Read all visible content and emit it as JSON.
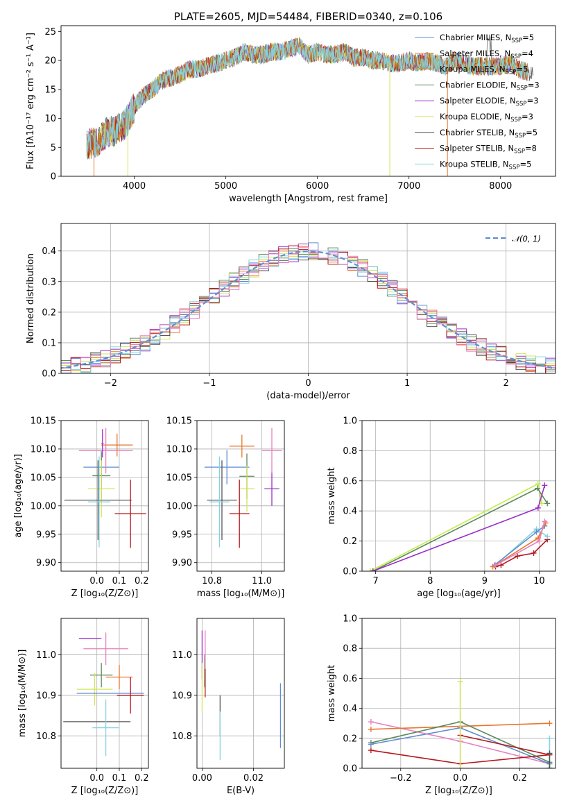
{
  "colors": {
    "blue": "#5f8dd3",
    "orange": "#e8762b",
    "green": "#5c8a5c",
    "purple": "#9b30c8",
    "yellow": "#d4e35a",
    "gray": "#555555",
    "red": "#b5171b",
    "cyan": "#86d3e0",
    "pink": "#e87fbf",
    "lime": "#c5ec4a",
    "dashed": "#5f8dd3",
    "grid": "#b0b0b0"
  },
  "chart_data": [
    {
      "id": "spectrum",
      "type": "line",
      "title": "PLATE=2605, MJD=54484, FIBERID=0340, z=0.106",
      "xlabel": "wavelength [Angstrom, rest frame]",
      "ylabel": "Flux [fλ10⁻¹⁷ erg cm⁻² s⁻¹ A⁻¹]",
      "xlim": [
        3200,
        8600
      ],
      "ylim": [
        0,
        26
      ],
      "xticks": [
        "4000",
        "5000",
        "6000",
        "7000",
        "8000"
      ],
      "yticks": [
        "0",
        "5",
        "10",
        "15",
        "20",
        "25"
      ],
      "grid": false,
      "legend_position": "right",
      "x": [
        3500,
        3600,
        3700,
        3800,
        3900,
        4000,
        4100,
        4200,
        4300,
        4400,
        4500,
        4600,
        4700,
        4800,
        4900,
        5000,
        5100,
        5200,
        5300,
        5400,
        5500,
        5600,
        5700,
        5800,
        5900,
        6000,
        6100,
        6200,
        6300,
        6400,
        6500,
        6600,
        6700,
        6800,
        6900,
        7000,
        7100,
        7200,
        7300,
        7400,
        7500,
        7600,
        7700,
        7800,
        7900,
        8000,
        8100,
        8200,
        8300
      ],
      "y": [
        5.5,
        6.0,
        7.5,
        8.0,
        9.0,
        12.0,
        14.0,
        15.0,
        16.5,
        17.0,
        17.5,
        18.5,
        18.5,
        19.0,
        19.5,
        20.0,
        20.5,
        21.5,
        21.0,
        21.0,
        21.5,
        21.5,
        22.0,
        22.5,
        21.0,
        21.5,
        21.0,
        21.0,
        21.5,
        20.5,
        20.5,
        20.0,
        20.0,
        19.5,
        19.5,
        20.0,
        19.5,
        20.0,
        19.5,
        19.0,
        20.0,
        19.5,
        19.0,
        19.0,
        19.0,
        19.0,
        19.5,
        18.5,
        18.0
      ],
      "series": [
        {
          "name": "Chabrier MILES, N",
          "sub": "SSP",
          "suffix": "=5",
          "color": "#5f8dd3"
        },
        {
          "name": "Salpeter MILES, N",
          "sub": "SSP",
          "suffix": "=4",
          "color": "#e8762b"
        },
        {
          "name": "Kroupa MILES, N",
          "sub": "SSP",
          "suffix": "=5",
          "color": "#c58a1e"
        },
        {
          "name": "Chabrier ELODIE, N",
          "sub": "SSP",
          "suffix": "=3",
          "color": "#5c8a5c"
        },
        {
          "name": "Salpeter ELODIE, N",
          "sub": "SSP",
          "suffix": "=3",
          "color": "#9b30c8"
        },
        {
          "name": "Kroupa ELODIE, N",
          "sub": "SSP",
          "suffix": "=3",
          "color": "#d4e35a"
        },
        {
          "name": "Chabrier STELIB, N",
          "sub": "SSP",
          "suffix": "=5",
          "color": "#555555"
        },
        {
          "name": "Salpeter STELIB, N",
          "sub": "SSP",
          "suffix": "=8",
          "color": "#b5171b"
        },
        {
          "name": "Kroupa STELIB, N",
          "sub": "SSP",
          "suffix": "=5",
          "color": "#86d3e0"
        }
      ]
    },
    {
      "id": "residuals",
      "type": "line",
      "xlabel": "(data-model)/error",
      "ylabel": "Normed distribution",
      "xlim": [
        -2.5,
        2.5
      ],
      "ylim": [
        0,
        0.49
      ],
      "xticks": [
        "−2",
        "−1",
        "0",
        "1",
        "2"
      ],
      "xtick_values": [
        -2,
        -1,
        0,
        1,
        2
      ],
      "yticks": [
        "0.0",
        "0.1",
        "0.2",
        "0.3",
        "0.4"
      ],
      "ytick_values": [
        0,
        0.1,
        0.2,
        0.3,
        0.4
      ],
      "grid": true,
      "legend_position": "top-right",
      "legend_label": "𝒩(0, 1)"
    },
    {
      "id": "age-vs-z",
      "type": "scatter",
      "xlabel": "Z [log₁₀(Z/Z⊙)]",
      "ylabel": "age  [log₁₀(age/yr)]",
      "xlim": [
        -0.16,
        0.23
      ],
      "ylim": [
        9.885,
        10.15
      ],
      "xticks": [
        "0.0",
        "0.1",
        "0.2"
      ],
      "xtick_values": [
        0.0,
        0.1,
        0.2
      ],
      "yticks": [
        "9.90",
        "9.95",
        "10.00",
        "10.05",
        "10.10",
        "10.15"
      ],
      "ytick_values": [
        9.9,
        9.95,
        10.0,
        10.05,
        10.1,
        10.15
      ],
      "grid": true,
      "points": [
        {
          "x": 0.02,
          "y": 10.068,
          "xerr": 0.08,
          "yerr": 0.03,
          "color": "#5f8dd3"
        },
        {
          "x": 0.09,
          "y": 10.107,
          "xerr": 0.07,
          "yerr": 0.02,
          "color": "#e8762b"
        },
        {
          "x": 0.02,
          "y": 10.053,
          "xerr": 0.04,
          "yerr": 0.04,
          "color": "#5c8a5c"
        },
        {
          "x": 0.02,
          "y": 10.03,
          "xerr": 0.06,
          "yerr": 0.05,
          "color": "#d4e35a"
        },
        {
          "x": 0.04,
          "y": 10.097,
          "xerr": 0.12,
          "yerr": 0.04,
          "color": "#e87fbf"
        },
        {
          "x": 0.005,
          "y": 10.01,
          "xerr": 0.15,
          "yerr": 0.07,
          "color": "#555555"
        },
        {
          "x": 0.15,
          "y": 9.986,
          "xerr": 0.07,
          "yerr": 0.06,
          "color": "#b5171b"
        },
        {
          "x": 0.01,
          "y": 10.007,
          "xerr": 0.05,
          "yerr": 0.08,
          "color": "#86d3e0"
        },
        {
          "x": 0.025,
          "y": 10.11,
          "xerr": 0.005,
          "yerr": 0.025,
          "color": "#9b30c8"
        }
      ]
    },
    {
      "id": "age-vs-mass",
      "type": "scatter",
      "xlabel": "mass [log₁₀(M/M⊙)]",
      "ylabel": "",
      "xlim": [
        10.74,
        11.09
      ],
      "ylim": [
        9.885,
        10.15
      ],
      "xticks": [
        "10.8",
        "11.0"
      ],
      "xtick_values": [
        10.8,
        11.0
      ],
      "yticks": [
        "9.90",
        "9.95",
        "10.00",
        "10.05",
        "10.10",
        "10.15"
      ],
      "ytick_values": [
        9.9,
        9.95,
        10.0,
        10.05,
        10.1,
        10.15
      ],
      "grid": true,
      "points": [
        {
          "x": 10.92,
          "y": 10.105,
          "xerr": 0.05,
          "yerr": 0.02,
          "color": "#e8762b"
        },
        {
          "x": 10.86,
          "y": 10.068,
          "xerr": 0.09,
          "yerr": 0.03,
          "color": "#5f8dd3"
        },
        {
          "x": 10.94,
          "y": 10.052,
          "xerr": 0.03,
          "yerr": 0.04,
          "color": "#5c8a5c"
        },
        {
          "x": 10.94,
          "y": 10.03,
          "xerr": 0.03,
          "yerr": 0.04,
          "color": "#d4e35a"
        },
        {
          "x": 11.04,
          "y": 10.03,
          "xerr": 0.03,
          "yerr": 0.03,
          "color": "#9b30c8"
        },
        {
          "x": 11.04,
          "y": 10.097,
          "xerr": 0.04,
          "yerr": 0.04,
          "color": "#e87fbf"
        },
        {
          "x": 10.84,
          "y": 10.01,
          "xerr": 0.06,
          "yerr": 0.07,
          "color": "#555555"
        },
        {
          "x": 10.91,
          "y": 9.986,
          "xerr": 0.04,
          "yerr": 0.06,
          "color": "#b5171b"
        },
        {
          "x": 10.83,
          "y": 10.007,
          "xerr": 0.04,
          "yerr": 0.08,
          "color": "#86d3e0"
        }
      ]
    },
    {
      "id": "weight-vs-age",
      "type": "line",
      "xlabel": "age  [log₁₀(age/yr)]",
      "ylabel": "mass weight",
      "xlim": [
        6.75,
        10.3
      ],
      "ylim": [
        0,
        1
      ],
      "xticks": [
        "7",
        "8",
        "9",
        "10"
      ],
      "xtick_values": [
        7,
        8,
        9,
        10
      ],
      "yticks": [
        "0.0",
        "0.2",
        "0.4",
        "0.6",
        "0.8",
        "1.0"
      ],
      "ytick_values": [
        0,
        0.2,
        0.4,
        0.6,
        0.8,
        1.0
      ],
      "grid": true,
      "series": [
        {
          "color": "#c5ec4a",
          "x": [
            6.9,
            9.98,
            10.05
          ],
          "y": [
            0.0,
            0.58,
            0.45
          ]
        },
        {
          "color": "#5c8a5c",
          "x": [
            6.95,
            9.97,
            10.15
          ],
          "y": [
            0.0,
            0.55,
            0.45
          ]
        },
        {
          "color": "#9b30c8",
          "x": [
            6.95,
            9.98,
            10.1
          ],
          "y": [
            0.0,
            0.42,
            0.57
          ]
        },
        {
          "color": "#b5171b",
          "x": [
            9.2,
            9.3,
            9.6,
            9.9,
            10.15
          ],
          "y": [
            0.03,
            0.04,
            0.1,
            0.12,
            0.21
          ]
        },
        {
          "color": "#86d3e0",
          "x": [
            9.2,
            9.95,
            10.15
          ],
          "y": [
            0.04,
            0.28,
            0.23
          ]
        },
        {
          "color": "#5f8dd3",
          "x": [
            9.18,
            9.95,
            10.1
          ],
          "y": [
            0.04,
            0.26,
            0.3
          ]
        },
        {
          "color": "#e8762b",
          "x": [
            9.15,
            9.98,
            10.12
          ],
          "y": [
            0.03,
            0.22,
            0.32
          ]
        },
        {
          "color": "#e87fbf",
          "x": [
            9.2,
            10.0,
            10.1
          ],
          "y": [
            0.04,
            0.2,
            0.33
          ]
        }
      ]
    },
    {
      "id": "mass-vs-z",
      "type": "scatter",
      "xlabel": "Z [log₁₀(Z/Z⊙)]",
      "ylabel": "mass [log₁₀(M/M⊙)]",
      "xlim": [
        -0.16,
        0.23
      ],
      "ylim": [
        10.72,
        11.09
      ],
      "xticks": [
        "0.0",
        "0.1",
        "0.2"
      ],
      "xtick_values": [
        0.0,
        0.1,
        0.2
      ],
      "yticks": [
        "10.8",
        "10.9",
        "11.0"
      ],
      "ytick_values": [
        10.8,
        10.9,
        11.0
      ],
      "grid": true,
      "points": [
        {
          "x": -0.03,
          "y": 11.04,
          "xerr": 0.05,
          "yerr": 0.0,
          "color": "#9b30c8"
        },
        {
          "x": 0.04,
          "y": 11.015,
          "xerr": 0.1,
          "yerr": 0.04,
          "color": "#e87fbf"
        },
        {
          "x": 0.1,
          "y": 10.945,
          "xerr": 0.06,
          "yerr": 0.03,
          "color": "#e8762b"
        },
        {
          "x": 0.02,
          "y": 10.95,
          "xerr": 0.05,
          "yerr": 0.03,
          "color": "#5c8a5c"
        },
        {
          "x": -0.01,
          "y": 10.915,
          "xerr": 0.08,
          "yerr": 0.04,
          "color": "#d4e35a"
        },
        {
          "x": 0.06,
          "y": 10.905,
          "xerr": 0.15,
          "yerr": 0.0,
          "color": "#5f8dd3"
        },
        {
          "x": 0.15,
          "y": 10.9,
          "xerr": 0.06,
          "yerr": 0.045,
          "color": "#b5171b"
        },
        {
          "x": 0.0,
          "y": 10.835,
          "xerr": 0.15,
          "yerr": 0.0,
          "color": "#555555"
        },
        {
          "x": 0.04,
          "y": 10.82,
          "xerr": 0.06,
          "yerr": 0.07,
          "color": "#86d3e0"
        }
      ]
    },
    {
      "id": "mass-vs-ebv",
      "type": "scatter",
      "xlabel": "E(B-V)",
      "ylabel": "",
      "xlim": [
        -0.002,
        0.032
      ],
      "ylim": [
        10.72,
        11.09
      ],
      "xticks": [
        "0.00",
        "0.02"
      ],
      "xtick_values": [
        0.0,
        0.02
      ],
      "yticks": [
        "10.8",
        "10.9",
        "11.0"
      ],
      "ytick_values": [
        10.8,
        10.9,
        11.0
      ],
      "grid": true,
      "points": [
        {
          "x": 0.0,
          "y": 11.0,
          "xerr": 0.0,
          "yerr": 0.06,
          "color": "#9b30c8"
        },
        {
          "x": 0.0,
          "y": 10.92,
          "xerr": 0.0,
          "yerr": 0.06,
          "color": "#d4e35a"
        },
        {
          "x": 0.001,
          "y": 10.96,
          "xerr": 0.0,
          "yerr": 0.04,
          "color": "#5c8a5c"
        },
        {
          "x": 0.0012,
          "y": 11.0,
          "xerr": 0.0,
          "yerr": 0.06,
          "color": "#e87fbf"
        },
        {
          "x": 0.0012,
          "y": 10.93,
          "xerr": 0.0,
          "yerr": 0.035,
          "color": "#b5171b"
        },
        {
          "x": 0.007,
          "y": 10.85,
          "xerr": 0.0,
          "yerr": 0.05,
          "color": "#555555"
        },
        {
          "x": 0.007,
          "y": 10.8,
          "xerr": 0.0,
          "yerr": 0.06,
          "color": "#86d3e0"
        },
        {
          "x": 0.0305,
          "y": 10.85,
          "xerr": 0.0,
          "yerr": 0.08,
          "color": "#5f8dd3"
        }
      ]
    },
    {
      "id": "weight-vs-z",
      "type": "line",
      "xlabel": "Z [log₁₀(Z/Z⊙)]",
      "ylabel": "mass weight",
      "xlim": [
        -0.33,
        0.32
      ],
      "ylim": [
        0,
        1
      ],
      "xticks": [
        "−0.2",
        "0.0",
        "0.2"
      ],
      "xtick_values": [
        -0.2,
        0.0,
        0.2
      ],
      "yticks": [
        "0.0",
        "0.2",
        "0.4",
        "0.6",
        "0.8",
        "1.0"
      ],
      "ytick_values": [
        0,
        0.2,
        0.4,
        0.6,
        0.8,
        1.0
      ],
      "grid": true,
      "series": [
        {
          "color": "#e87fbf",
          "x": [
            -0.3,
            0.0,
            0.3
          ],
          "y": [
            0.31,
            0.18,
            0.03
          ]
        },
        {
          "color": "#e8762b",
          "x": [
            -0.3,
            0.3
          ],
          "y": [
            0.26,
            0.3
          ]
        },
        {
          "color": "#5c8a5c",
          "x": [
            -0.3,
            0.0,
            0.3
          ],
          "y": [
            0.17,
            0.31,
            0.04
          ]
        },
        {
          "color": "#5f8dd3",
          "x": [
            -0.3,
            0.0,
            0.3
          ],
          "y": [
            0.16,
            0.27,
            0.03
          ]
        },
        {
          "color": "#b5171b",
          "x": [
            -0.3,
            0.0,
            0.3
          ],
          "y": [
            0.12,
            0.03,
            0.09
          ]
        },
        {
          "color": "#b5171b",
          "x": [
            0.0,
            0.3
          ],
          "y": [
            0.22,
            0.09
          ]
        },
        {
          "color": "#d4e35a",
          "x": [
            0.0,
            0.0
          ],
          "y": [
            0.0,
            0.58
          ]
        },
        {
          "color": "#86d3e0",
          "x": [
            0.3,
            0.3
          ],
          "y": [
            0.0,
            0.2
          ]
        },
        {
          "color": "#555555",
          "x": [
            0.3,
            0.3
          ],
          "y": [
            0.0,
            0.1
          ]
        }
      ]
    }
  ]
}
